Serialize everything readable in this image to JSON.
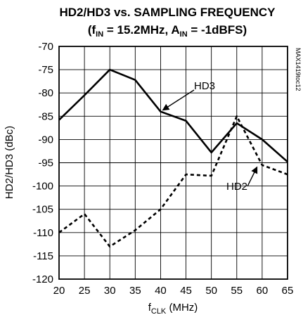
{
  "chart_data": {
    "type": "line",
    "title": "HD2/HD3 vs. SAMPLING FREQUENCY",
    "subtitle": {
      "open": "(f",
      "fin_sub": "IN",
      "fin_val": " = 15.2MHz, A",
      "ain_sub": "IN",
      "ain_val": " = -1dBFS)"
    },
    "xlabel": {
      "main": "f",
      "sub": "CLK",
      "unit": " (MHz)"
    },
    "ylabel": "HD2/HD3 (dBc)",
    "xlim": [
      20,
      65
    ],
    "ylim": [
      -120,
      -70
    ],
    "x_ticks": [
      "20",
      "25",
      "30",
      "35",
      "40",
      "45",
      "50",
      "55",
      "60",
      "65"
    ],
    "y_ticks": [
      "-70",
      "-75",
      "-80",
      "-85",
      "-90",
      "-95",
      "-100",
      "-105",
      "-110",
      "-115",
      "-120"
    ],
    "grid": true,
    "code_label": "MAX1419toc12",
    "series": [
      {
        "name": "HD3",
        "style": "solid",
        "x": [
          20,
          25,
          30,
          35,
          40,
          45,
          50,
          55,
          60,
          65
        ],
        "values": [
          -85.8,
          -80.5,
          -75.0,
          -77.2,
          -84.0,
          -86.0,
          -92.8,
          -86.5,
          -90.0,
          -94.8
        ]
      },
      {
        "name": "HD2",
        "style": "dashed",
        "x": [
          20,
          25,
          30,
          35,
          40,
          45,
          50,
          55,
          60,
          65
        ],
        "values": [
          -110.0,
          -106.0,
          -113.0,
          -109.5,
          -105.0,
          -97.5,
          -97.8,
          -85.0,
          -95.5,
          -97.5
        ]
      }
    ]
  }
}
